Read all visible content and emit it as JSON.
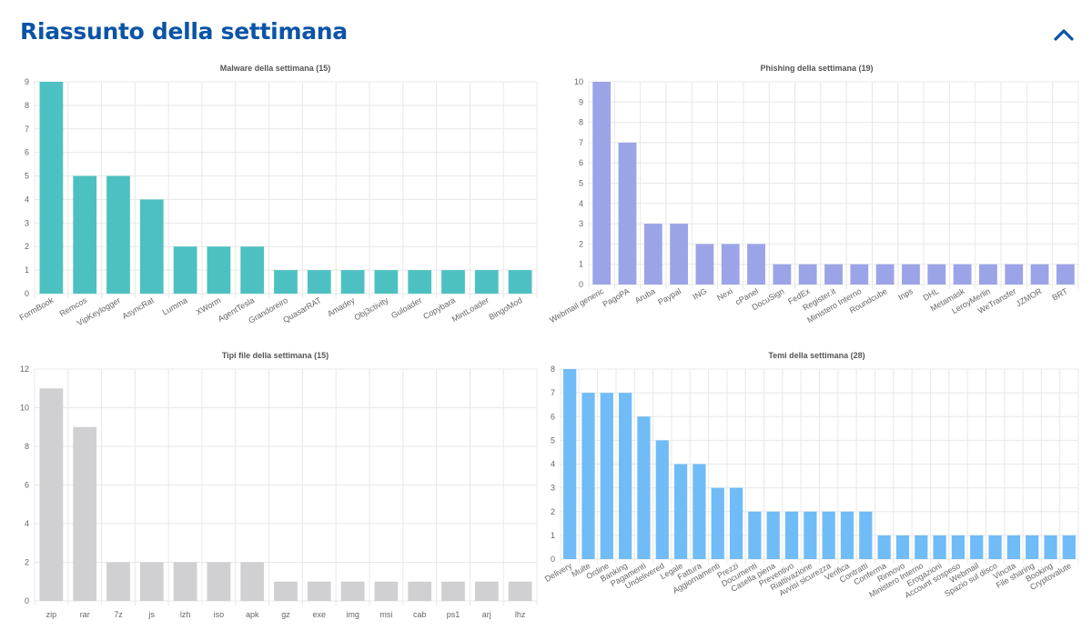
{
  "header": {
    "title": "Riassunto della settimana",
    "collapse_icon": "chevron-up-icon"
  },
  "colors": {
    "accent": "#0b54a6",
    "malware": "#4dc1c1",
    "phishing": "#9ca4e8",
    "filetypes": "#d0d0d2",
    "themes": "#6fbcf7",
    "grid": "#e8e8e8"
  },
  "chart_data": [
    {
      "type": "bar",
      "title": "Malware della settimana (15)",
      "categories": [
        "FormBook",
        "Remcos",
        "VipKeylogger",
        "AsyncRat",
        "Lumma",
        "XWorm",
        "AgentTesla",
        "Grandoreiro",
        "QuasarRAT",
        "Amadey",
        "Obj3ctivity",
        "Guloader",
        "Copybara",
        "MintLoader",
        "BingoMod"
      ],
      "values": [
        9,
        5,
        5,
        4,
        2,
        2,
        2,
        1,
        1,
        1,
        1,
        1,
        1,
        1,
        1
      ],
      "ylim": [
        0,
        9
      ],
      "yticks": [
        0,
        1,
        2,
        3,
        4,
        5,
        6,
        7,
        8,
        9
      ],
      "rotate_labels": true,
      "grid": true,
      "color": "#4dc1c1"
    },
    {
      "type": "bar",
      "title": "Phishing della settimana (19)",
      "categories": [
        "Webmail generic",
        "PagoPA",
        "Aruba",
        "Paypal",
        "ING",
        "Nexi",
        "cPanel",
        "DocuSign",
        "FedEx",
        "Register.it",
        "Ministero Interno",
        "Roundcube",
        "Inps",
        "DHL",
        "Metamask",
        "LeroyMerlin",
        "WeTransfer",
        "JZMOR",
        "BRT"
      ],
      "values": [
        10,
        7,
        3,
        3,
        2,
        2,
        2,
        1,
        1,
        1,
        1,
        1,
        1,
        1,
        1,
        1,
        1,
        1,
        1
      ],
      "ylim": [
        0,
        10
      ],
      "yticks": [
        0,
        1,
        2,
        3,
        4,
        5,
        6,
        7,
        8,
        9,
        10
      ],
      "rotate_labels": true,
      "grid": true,
      "color": "#9ca4e8"
    },
    {
      "type": "bar",
      "title": "Tipi file della settimana (15)",
      "categories": [
        "zip",
        "rar",
        "7z",
        "js",
        "lzh",
        "iso",
        "apk",
        "gz",
        "exe",
        "img",
        "msi",
        "cab",
        "ps1",
        "arj",
        "lhz"
      ],
      "values": [
        11,
        9,
        2,
        2,
        2,
        2,
        2,
        1,
        1,
        1,
        1,
        1,
        1,
        1,
        1
      ],
      "ylim": [
        0,
        12
      ],
      "yticks": [
        0,
        2,
        4,
        6,
        8,
        10,
        12
      ],
      "rotate_labels": false,
      "grid": true,
      "color": "#d0d0d2"
    },
    {
      "type": "bar",
      "title": "Temi della settimana (28)",
      "categories": [
        "Delivery",
        "Multe",
        "Ordine",
        "Banking",
        "Pagamenti",
        "Undelivered",
        "Legale",
        "Fattura",
        "Aggiornamenti",
        "Prezzi",
        "Documenti",
        "Casella piena",
        "Preventivo",
        "Riattivazione",
        "Avvisi sicurezza",
        "Verifica",
        "Contratti",
        "Conferma",
        "Rinnovo",
        "Ministero Interno",
        "Erogazioni",
        "Account sospeso",
        "Webmail",
        "Spazio sul disco",
        "Vincita",
        "File sharing",
        "Booking",
        "Cryptovalute"
      ],
      "values": [
        8,
        7,
        7,
        7,
        6,
        5,
        4,
        4,
        3,
        3,
        2,
        2,
        2,
        2,
        2,
        2,
        2,
        1,
        1,
        1,
        1,
        1,
        1,
        1,
        1,
        1,
        1,
        1
      ],
      "ylim": [
        0,
        8
      ],
      "yticks": [
        0,
        1,
        2,
        3,
        4,
        5,
        6,
        7,
        8
      ],
      "rotate_labels": true,
      "grid": true,
      "color": "#6fbcf7"
    }
  ]
}
